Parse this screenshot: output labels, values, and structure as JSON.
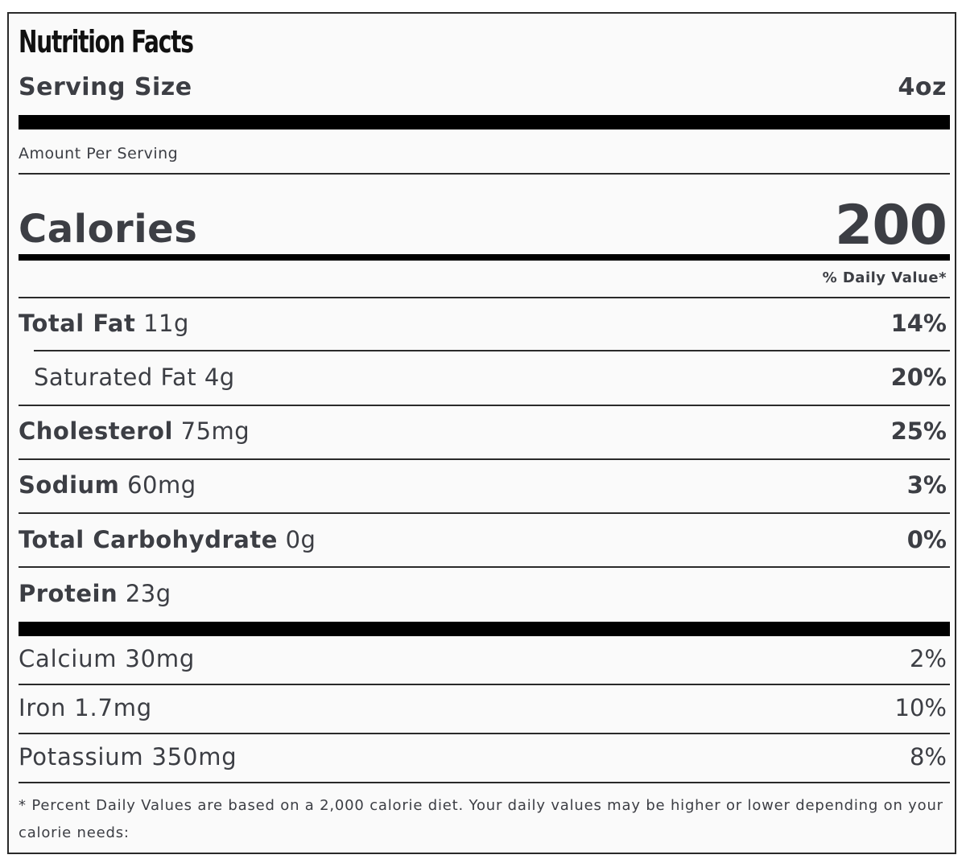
{
  "title": "Nutrition Facts",
  "serving": {
    "label": "Serving Size",
    "value": "4oz"
  },
  "amount_per_serving": "Amount Per Serving",
  "calories": {
    "label": "Calories",
    "value": "200"
  },
  "daily_value_header": "% Daily Value*",
  "nutrients": [
    {
      "name": "Total Fat",
      "amount": "11g",
      "pct": "14%"
    },
    {
      "name": "Saturated Fat",
      "amount": "4g",
      "pct": "20%"
    },
    {
      "name": "Cholesterol",
      "amount": "75mg",
      "pct": "25%"
    },
    {
      "name": "Sodium",
      "amount": "60mg",
      "pct": "3%"
    },
    {
      "name": "Total Carbohydrate",
      "amount": "0g",
      "pct": "0%"
    },
    {
      "name": "Protein",
      "amount": "23g"
    }
  ],
  "minerals": [
    {
      "name": "Calcium",
      "amount": "30mg",
      "pct": "2%"
    },
    {
      "name": "Iron",
      "amount": "1.7mg",
      "pct": "10%"
    },
    {
      "name": "Potassium",
      "amount": "350mg",
      "pct": "8%"
    }
  ],
  "footnote": "* Percent Daily Values are based on a 2,000 calorie diet. Your daily values may be higher or lower depending on your calorie needs:"
}
